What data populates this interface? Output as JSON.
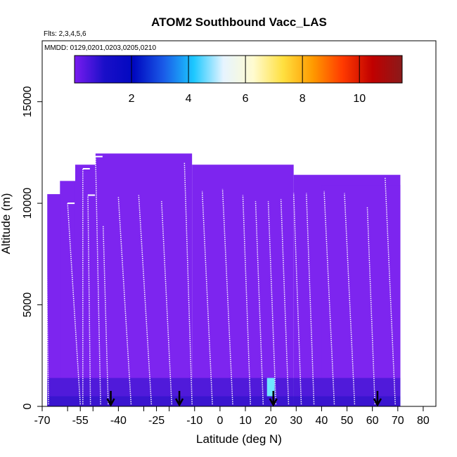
{
  "chart_data": {
    "type": "heatmap",
    "title": "ATOM2 Southbound Vacc_LAS",
    "flights_note": "Flts: 2,3,4,5,6",
    "dates_note": "MMDD: 0129,0201,0203,0205,0210",
    "xlabel": "Latitude (deg N)",
    "ylabel": "Altitude (m)",
    "xlim": [
      -70,
      85
    ],
    "ylim": [
      0,
      18000
    ],
    "x_ticks": [
      -70,
      -55,
      -40,
      -25,
      -10,
      0,
      10,
      20,
      30,
      40,
      50,
      60,
      70,
      80
    ],
    "x_minor_ticks": [
      -60,
      -50,
      -30,
      -20,
      90
    ],
    "y_ticks": [
      0,
      5000,
      10000,
      15000
    ],
    "colorbar": {
      "range": [
        0,
        11.5
      ],
      "ticks": [
        2,
        4,
        6,
        8,
        10
      ],
      "colors": [
        "#7a1cf0",
        "#1a0fc8",
        "#0008c0",
        "#1a5ce8",
        "#1cc8ff",
        "#e6f4ff",
        "#fffbd0",
        "#ffe040",
        "#ff9a00",
        "#ff3a00",
        "#c00000",
        "#8a1a1a"
      ]
    },
    "background_color": "#7d25ef",
    "low_level_color": "#2b12c8",
    "bright_cell_color": "#6fe6ff",
    "profile_color": "#ffffff",
    "coverage_blocks": [
      {
        "lat_start": -68,
        "lat_end": -45,
        "alt_top": 10450
      },
      {
        "lat_start": -63,
        "lat_end": -53,
        "alt_top": 11100
      },
      {
        "lat_start": -57,
        "lat_end": -45,
        "alt_top": 11900
      },
      {
        "lat_start": -49,
        "lat_end": -11,
        "alt_top": 12450
      },
      {
        "lat_start": -11,
        "lat_end": 29,
        "alt_top": 11900
      },
      {
        "lat_start": 29,
        "lat_end": 71,
        "alt_top": 11400
      },
      {
        "lat_start": 40,
        "lat_end": 71,
        "alt_top": 10900
      }
    ],
    "profiles": [
      {
        "lat_bottom": -67.5,
        "lat_top": -68.5,
        "alt_top": 9000
      },
      {
        "lat_bottom": -55,
        "lat_top": -60,
        "alt_top": 10000
      },
      {
        "lat_bottom": -54,
        "lat_top": -54,
        "alt_top": 11700
      },
      {
        "lat_bottom": -51,
        "lat_top": -52,
        "alt_top": 10400
      },
      {
        "lat_bottom": -47,
        "lat_top": -49,
        "alt_top": 12300
      },
      {
        "lat_bottom": -44,
        "lat_top": -46,
        "alt_top": 8900
      },
      {
        "lat_bottom": -35,
        "lat_top": -40,
        "alt_top": 10300
      },
      {
        "lat_bottom": -27,
        "lat_top": -32,
        "alt_top": 10400
      },
      {
        "lat_bottom": -19,
        "lat_top": -23,
        "alt_top": 10100
      },
      {
        "lat_bottom": -11,
        "lat_top": -14,
        "alt_top": 12000
      },
      {
        "lat_bottom": -3,
        "lat_top": -7,
        "alt_top": 10600
      },
      {
        "lat_bottom": 5,
        "lat_top": 1,
        "alt_top": 10700
      },
      {
        "lat_bottom": 12,
        "lat_top": 9,
        "alt_top": 10400
      },
      {
        "lat_bottom": 17,
        "lat_top": 14,
        "alt_top": 10100
      },
      {
        "lat_bottom": 22,
        "lat_top": 19,
        "alt_top": 10100
      },
      {
        "lat_bottom": 27,
        "lat_top": 24,
        "alt_top": 10200
      },
      {
        "lat_bottom": 32,
        "lat_top": 29,
        "alt_top": 10500
      },
      {
        "lat_bottom": 37,
        "lat_top": 34,
        "alt_top": 10500
      },
      {
        "lat_bottom": 45,
        "lat_top": 41,
        "alt_top": 10600
      },
      {
        "lat_bottom": 53,
        "lat_top": 49,
        "alt_top": 10500
      },
      {
        "lat_bottom": 61,
        "lat_top": 58,
        "alt_top": 9800
      },
      {
        "lat_bottom": 69,
        "lat_top": 65,
        "alt_top": 11300
      }
    ],
    "arrows_lat": [
      -43,
      -16,
      21,
      62
    ]
  }
}
